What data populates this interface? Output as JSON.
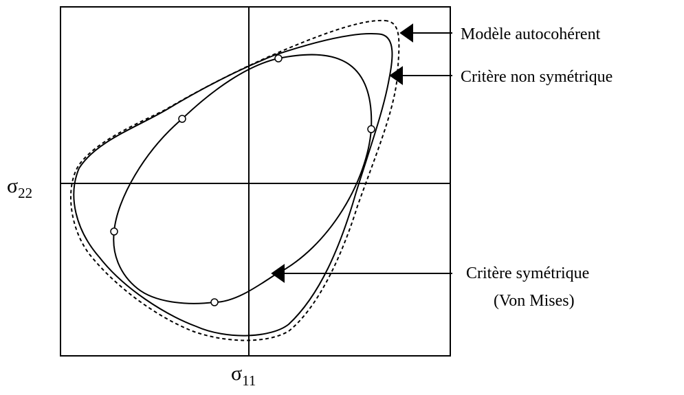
{
  "axes": {
    "y_label": {
      "symbol": "σ",
      "subscript": "22"
    },
    "x_label": {
      "symbol": "σ",
      "subscript": "11"
    }
  },
  "annotations": {
    "self_consistent": "Modèle autocohérent",
    "non_symmetric": "Critère non symétrique",
    "symmetric": "Critère symétrique",
    "symmetric_note": "(Von Mises)"
  }
}
